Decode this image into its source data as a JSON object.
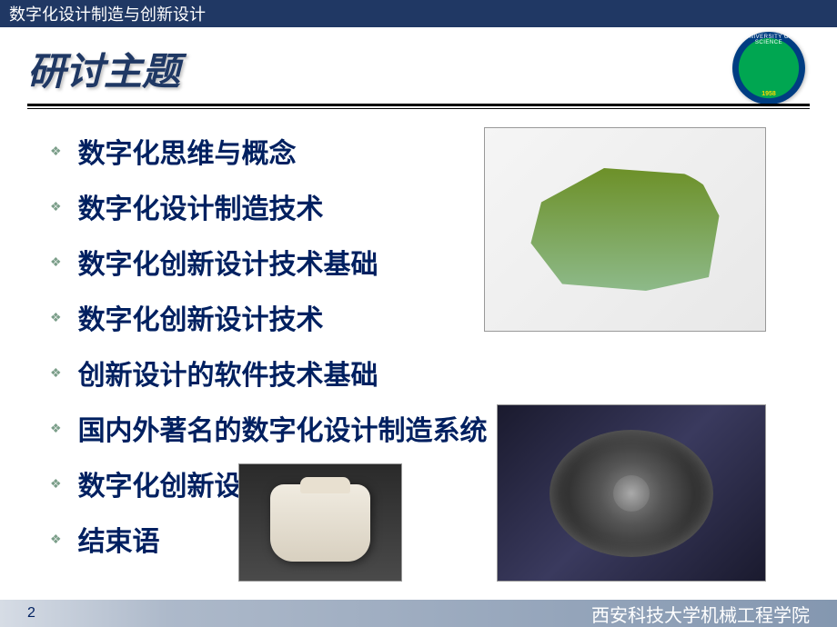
{
  "header": {
    "course_title": "数字化设计制造与创新设计"
  },
  "title": "研讨主题",
  "logo": {
    "top_text": "UNIVERSITY OF SCIENCE",
    "bottom_text": "1958",
    "outer_color": "#003d82",
    "inner_color": "#00a651"
  },
  "bullets": [
    "数字化思维与概念",
    "数字化设计制造技术",
    "数字化创新设计技术基础",
    "数字化创新设计技术",
    "创新设计的软件技术基础",
    "国内外著名的数字化设计制造系统",
    "数字化创新设计案例",
    "结束语"
  ],
  "bullet_marker": "❖",
  "footer": {
    "page_number": "2",
    "institution": "西安科技大学机械工程学院"
  },
  "colors": {
    "header_bg": "#203864",
    "title_color": "#1f3864",
    "bullet_text_color": "#002060",
    "bullet_marker_color": "#7b9e89",
    "footer_gradient_start": "#d6dce5",
    "footer_gradient_end": "#8497b0"
  },
  "images": {
    "cad_model": "aircraft-fuselage-cad",
    "engine": "jet-engine-component",
    "appliance": "food-processor"
  }
}
